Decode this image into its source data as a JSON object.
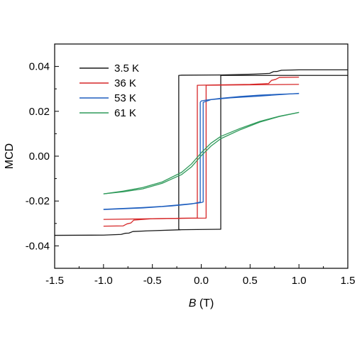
{
  "chart_data": {
    "type": "line",
    "title": "",
    "xlabel": {
      "italic": "B",
      "rest": " (T)"
    },
    "ylabel": "MCD",
    "xlim": [
      -1.5,
      1.5
    ],
    "ylim": [
      -0.05,
      0.05
    ],
    "xticks": [
      -1.5,
      -1.0,
      -0.5,
      0.0,
      0.5,
      1.0,
      1.5
    ],
    "xtick_labels": [
      "-1.5",
      "-1.0",
      "-0.5",
      "0.0",
      "0.5",
      "1.0",
      "1.5"
    ],
    "yticks": [
      -0.04,
      -0.02,
      0.0,
      0.02,
      0.04
    ],
    "ytick_labels": [
      "-0.04",
      "-0.02",
      "0.00",
      "0.02",
      "0.04"
    ],
    "grid": false,
    "legend_position": "top-left",
    "series": [
      {
        "name": "3.5 K",
        "color": "#1a1a1a",
        "branches": [
          [
            [
              -1.5,
              -0.0353
            ],
            [
              -1.0,
              -0.0352
            ],
            [
              -0.82,
              -0.0349
            ],
            [
              -0.78,
              -0.0344
            ],
            [
              -0.74,
              -0.0343
            ],
            [
              -0.7,
              -0.0336
            ],
            [
              -0.55,
              -0.0333
            ],
            [
              -0.2,
              -0.0328
            ],
            [
              0.19,
              -0.0326
            ],
            [
              0.2,
              -0.0326
            ],
            [
              0.2,
              0.036
            ],
            [
              1.5,
              0.036
            ]
          ],
          [
            [
              1.5,
              0.0385
            ],
            [
              1.0,
              0.0385
            ],
            [
              0.82,
              0.0383
            ],
            [
              0.78,
              0.0378
            ],
            [
              0.74,
              0.0377
            ],
            [
              0.7,
              0.0369
            ],
            [
              0.55,
              0.0366
            ],
            [
              0.2,
              0.0362
            ],
            [
              -0.2,
              0.0361
            ],
            [
              -0.23,
              0.036
            ],
            [
              -0.23,
              -0.0326
            ],
            [
              -0.22,
              -0.0327
            ]
          ]
        ]
      },
      {
        "name": "36 K",
        "color": "#d62728",
        "branches": [
          [
            [
              -1.0,
              -0.0312
            ],
            [
              -0.8,
              -0.0311
            ],
            [
              -0.76,
              -0.0302
            ],
            [
              -0.72,
              -0.0298
            ],
            [
              -0.69,
              -0.0285
            ],
            [
              -0.5,
              -0.0279
            ],
            [
              -0.2,
              -0.0277
            ],
            [
              0.05,
              -0.0276
            ],
            [
              0.05,
              0.0316
            ],
            [
              1.0,
              0.032
            ]
          ],
          [
            [
              1.0,
              0.0352
            ],
            [
              0.8,
              0.0351
            ],
            [
              0.76,
              0.0342
            ],
            [
              0.72,
              0.0338
            ],
            [
              0.69,
              0.0324
            ],
            [
              0.5,
              0.032
            ],
            [
              0.2,
              0.0318
            ],
            [
              -0.04,
              0.0316
            ],
            [
              -0.04,
              -0.0276
            ],
            [
              -1.0,
              -0.0282
            ]
          ]
        ]
      },
      {
        "name": "53 K",
        "color": "#1f5fbf",
        "branches": [
          [
            [
              -1.0,
              -0.0237
            ],
            [
              -0.8,
              -0.0233
            ],
            [
              -0.6,
              -0.0229
            ],
            [
              -0.4,
              -0.0224
            ],
            [
              -0.2,
              -0.0216
            ],
            [
              -0.05,
              -0.021
            ],
            [
              0.0,
              -0.0207
            ],
            [
              0.02,
              -0.0204
            ],
            [
              0.02,
              0.024
            ],
            [
              0.1,
              0.0252
            ],
            [
              0.3,
              0.026
            ],
            [
              0.6,
              0.0268
            ],
            [
              1.0,
              0.028
            ]
          ],
          [
            [
              1.0,
              0.0279
            ],
            [
              0.8,
              0.0276
            ],
            [
              0.6,
              0.0272
            ],
            [
              0.4,
              0.0266
            ],
            [
              0.2,
              0.0258
            ],
            [
              0.05,
              0.025
            ],
            [
              0.0,
              0.0246
            ],
            [
              -0.01,
              0.024
            ],
            [
              -0.01,
              -0.0205
            ],
            [
              -0.1,
              -0.0213
            ],
            [
              -0.3,
              -0.0222
            ],
            [
              -0.6,
              -0.0231
            ],
            [
              -1.0,
              -0.0238
            ]
          ]
        ]
      },
      {
        "name": "61 K",
        "color": "#2e9a5a",
        "branches": [
          [
            [
              -1.0,
              -0.0168
            ],
            [
              -0.8,
              -0.0156
            ],
            [
              -0.6,
              -0.014
            ],
            [
              -0.4,
              -0.0115
            ],
            [
              -0.2,
              -0.0072
            ],
            [
              -0.1,
              -0.0035
            ],
            [
              0.0,
              0.0015
            ],
            [
              0.1,
              0.0058
            ],
            [
              0.2,
              0.0088
            ],
            [
              0.4,
              0.0124
            ],
            [
              0.6,
              0.0155
            ],
            [
              0.8,
              0.0178
            ],
            [
              1.0,
              0.0195
            ]
          ],
          [
            [
              1.0,
              0.0195
            ],
            [
              0.8,
              0.0177
            ],
            [
              0.6,
              0.0152
            ],
            [
              0.4,
              0.0118
            ],
            [
              0.2,
              0.0078
            ],
            [
              0.1,
              0.0045
            ],
            [
              0.0,
              0.0002
            ],
            [
              -0.1,
              -0.0048
            ],
            [
              -0.2,
              -0.0082
            ],
            [
              -0.4,
              -0.0121
            ],
            [
              -0.6,
              -0.0146
            ],
            [
              -0.8,
              -0.0159
            ],
            [
              -1.0,
              -0.0168
            ]
          ]
        ]
      }
    ]
  }
}
